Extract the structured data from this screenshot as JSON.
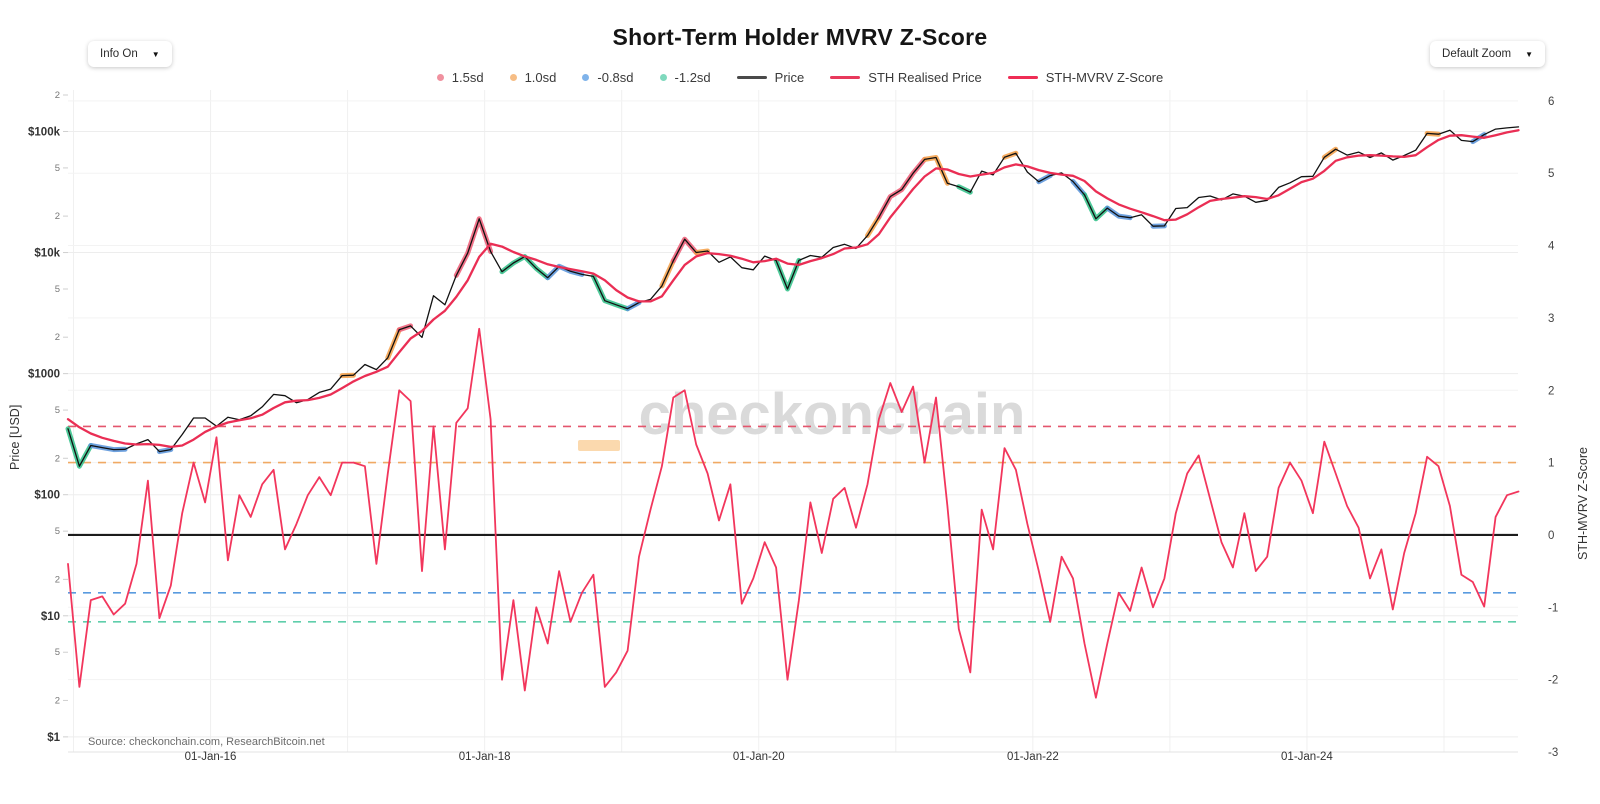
{
  "header": {
    "title": "Short-Term Holder MVRV Z-Score"
  },
  "controls": {
    "info_dropdown": {
      "label": "Info On"
    },
    "zoom_dropdown": {
      "label": "Default Zoom"
    }
  },
  "watermark": {
    "text": "checkonchain",
    "underscore_color": "#fbd9ae",
    "text_color": "#dadada"
  },
  "source_note": "Source: checkonchain.com, ResearchBitcoin.net",
  "legend": [
    {
      "label": "1.5sd",
      "type": "dot",
      "color": "#f0919f"
    },
    {
      "label": "1.0sd",
      "type": "dot",
      "color": "#f6bd85"
    },
    {
      "label": "-0.8sd",
      "type": "dot",
      "color": "#7fb3ea"
    },
    {
      "label": "-1.2sd",
      "type": "dot",
      "color": "#7fd9bd"
    },
    {
      "label": "Price",
      "type": "line",
      "color": "#4a4a4a"
    },
    {
      "label": "STH Realised Price",
      "type": "line",
      "color": "#e8395c"
    },
    {
      "label": "STH-MVRV Z-Score",
      "type": "line",
      "color": "#ef2d55"
    }
  ],
  "axes": {
    "left_title": "Price [USD]",
    "right_title": "STH-MVRV Z-Score",
    "x_lim": [
      2014.96,
      2025.54
    ],
    "price_ylim": [
      0.75,
      220000
    ],
    "z_ylim": [
      -3.0,
      6.15
    ],
    "x_ticks": [
      {
        "label": "01-Jan-16",
        "year": 2016
      },
      {
        "label": "01-Jan-18",
        "year": 2018
      },
      {
        "label": "01-Jan-20",
        "year": 2020
      },
      {
        "label": "01-Jan-22",
        "year": 2022
      },
      {
        "label": "01-Jan-24",
        "year": 2024
      }
    ],
    "x_grid_years": [
      2015,
      2016,
      2017,
      2018,
      2019,
      2020,
      2021,
      2022,
      2023,
      2024,
      2025
    ],
    "price_ticks": [
      {
        "label": "2",
        "v": 200000,
        "minor": true
      },
      {
        "label": "$100k",
        "v": 100000
      },
      {
        "label": "5",
        "v": 50000,
        "minor": true
      },
      {
        "label": "2",
        "v": 20000,
        "minor": true
      },
      {
        "label": "$10k",
        "v": 10000
      },
      {
        "label": "5",
        "v": 5000,
        "minor": true
      },
      {
        "label": "2",
        "v": 2000,
        "minor": true
      },
      {
        "label": "$1000",
        "v": 1000
      },
      {
        "label": "5",
        "v": 500,
        "minor": true
      },
      {
        "label": "2",
        "v": 200,
        "minor": true
      },
      {
        "label": "$100",
        "v": 100
      },
      {
        "label": "5",
        "v": 50,
        "minor": true
      },
      {
        "label": "2",
        "v": 20,
        "minor": true
      },
      {
        "label": "$10",
        "v": 10
      },
      {
        "label": "5",
        "v": 5,
        "minor": true
      },
      {
        "label": "2",
        "v": 2,
        "minor": true
      },
      {
        "label": "$1",
        "v": 1
      }
    ],
    "z_ticks": [
      6,
      5,
      4,
      3,
      2,
      1,
      0,
      -1,
      -2,
      -3
    ]
  },
  "chart_data": {
    "type": "line",
    "title": "Short-Term Holder MVRV Z-Score",
    "x_start": 2014.96,
    "x_step_years": 0.0833333,
    "xlabel": "",
    "ylabel_left": "Price [USD]",
    "ylabel_right": "STH-MVRV Z-Score",
    "grid": true,
    "legend_position": "top",
    "threshold_lines": [
      {
        "label": "1.5sd",
        "z": 1.5,
        "color": "#e4566d",
        "style": "dashed"
      },
      {
        "label": "1.0sd",
        "z": 1.0,
        "color": "#f0a964",
        "style": "dashed"
      },
      {
        "label": "zero",
        "z": 0,
        "color": "#1c1c1c",
        "style": "solid"
      },
      {
        "label": "-0.8sd",
        "z": -0.8,
        "color": "#599bdf",
        "style": "dashed"
      },
      {
        "label": "-1.2sd",
        "z": -1.2,
        "color": "#5fceab",
        "style": "dashed"
      }
    ],
    "price_band_rules": [
      {
        "op": "gte",
        "value": 1.5,
        "color": "#ee5e78"
      },
      {
        "op": "gte",
        "value": 1.0,
        "color": "#f5a24c"
      },
      {
        "op": "lte",
        "value": -1.2,
        "color": "#35c28b"
      },
      {
        "op": "lte",
        "value": -0.8,
        "color": "#5b95db"
      }
    ],
    "series": [
      {
        "name": "Price",
        "axis": "price",
        "color": "#111111",
        "values": [
          350,
          172,
          255,
          245,
          236,
          237,
          263,
          285,
          227,
          236,
          314,
          430,
          430,
          368,
          437,
          416,
          448,
          531,
          673,
          657,
          575,
          610,
          700,
          745,
          963,
          970,
          1190,
          1080,
          1350,
          2300,
          2480,
          1990,
          4400,
          3700,
          6470,
          9900,
          19000,
          10200,
          6950,
          8200,
          9250,
          7400,
          6200,
          7700,
          7000,
          6600,
          6350,
          4000,
          3700,
          3440,
          3860,
          4100,
          5300,
          8550,
          12900,
          10000,
          10300,
          8300,
          9200,
          7500,
          7200,
          9350,
          8600,
          5000,
          8620,
          9450,
          9140,
          11000,
          11700,
          10800,
          13800,
          19600,
          29000,
          33100,
          45200,
          58800,
          61000,
          37300,
          35000,
          31500,
          47100,
          43800,
          61300,
          66000,
          46200,
          38500,
          43200,
          45500,
          38600,
          30000,
          19000,
          23300,
          20000,
          19400,
          20500,
          16500,
          16600,
          23100,
          23500,
          28500,
          29300,
          27200,
          30500,
          29200,
          26000,
          27000,
          34500,
          37700,
          42300,
          42600,
          61200,
          71300,
          63800,
          67500,
          61000,
          66500,
          58000,
          63300,
          70000,
          96400,
          95000,
          102400,
          84400,
          82500,
          94200,
          104600,
          107000,
          109000
        ]
      },
      {
        "name": "STH Realised Price",
        "axis": "price",
        "color": "#ea2e54",
        "values": [
          420,
          360,
          320,
          295,
          278,
          265,
          260,
          262,
          258,
          248,
          255,
          285,
          330,
          365,
          395,
          412,
          428,
          458,
          520,
          580,
          598,
          605,
          630,
          672,
          760,
          862,
          955,
          1035,
          1140,
          1500,
          1950,
          2250,
          2800,
          3300,
          4300,
          5900,
          9200,
          11800,
          11200,
          10100,
          9300,
          8700,
          8000,
          7600,
          7300,
          7000,
          6700,
          5900,
          4900,
          4250,
          3950,
          3950,
          4350,
          5900,
          7900,
          9300,
          9900,
          9700,
          9400,
          8900,
          8300,
          8500,
          8900,
          8100,
          7900,
          8500,
          9000,
          9700,
          10800,
          11000,
          11700,
          14200,
          19500,
          25500,
          33500,
          42500,
          49500,
          48500,
          44500,
          42500,
          44000,
          45500,
          50500,
          53500,
          51500,
          48000,
          45500,
          44000,
          43000,
          39000,
          32000,
          28000,
          25000,
          23000,
          21500,
          20000,
          18500,
          18700,
          20700,
          23700,
          26700,
          27700,
          28400,
          29200,
          28700,
          27700,
          29700,
          33700,
          38200,
          40700,
          47200,
          57200,
          61200,
          63200,
          63700,
          63200,
          62200,
          61700,
          63700,
          74200,
          85200,
          92200,
          93200,
          90700,
          88700,
          93200,
          98200,
          102500
        ]
      },
      {
        "name": "STH-MVRV Z-Score",
        "axis": "z",
        "color": "#f2365c",
        "values": [
          -0.4,
          -2.1,
          -0.9,
          -0.85,
          -1.1,
          -0.95,
          -0.4,
          0.75,
          -1.15,
          -0.7,
          0.3,
          1.0,
          0.45,
          1.35,
          -0.35,
          0.55,
          0.25,
          0.7,
          0.9,
          -0.2,
          0.15,
          0.55,
          0.8,
          0.55,
          1.0,
          1.0,
          0.95,
          -0.4,
          0.85,
          2.0,
          1.85,
          -0.5,
          1.5,
          -0.2,
          1.55,
          1.75,
          2.85,
          1.6,
          -2.0,
          -0.9,
          -2.15,
          -1.0,
          -1.5,
          -0.5,
          -1.2,
          -0.8,
          -0.55,
          -2.1,
          -1.9,
          -1.6,
          -0.3,
          0.35,
          0.95,
          1.9,
          2.0,
          1.25,
          0.85,
          0.2,
          0.7,
          -0.95,
          -0.6,
          -0.1,
          -0.45,
          -2.0,
          -0.9,
          0.45,
          -0.25,
          0.5,
          0.65,
          0.1,
          0.7,
          1.6,
          2.1,
          1.7,
          2.05,
          1.0,
          1.9,
          0.4,
          -1.3,
          -1.9,
          0.35,
          -0.2,
          1.2,
          0.9,
          0.15,
          -0.5,
          -1.2,
          -0.3,
          -0.6,
          -1.5,
          -2.25,
          -1.5,
          -0.8,
          -1.05,
          -0.45,
          -1.0,
          -0.6,
          0.3,
          0.85,
          1.1,
          0.5,
          -0.1,
          -0.45,
          0.3,
          -0.5,
          -0.3,
          0.65,
          1.0,
          0.75,
          0.3,
          1.29,
          0.85,
          0.4,
          0.1,
          -0.6,
          -0.2,
          -1.03,
          -0.25,
          0.3,
          1.08,
          0.95,
          0.4,
          -0.55,
          -0.65,
          -0.99,
          0.25,
          0.55,
          0.6
        ]
      }
    ]
  }
}
